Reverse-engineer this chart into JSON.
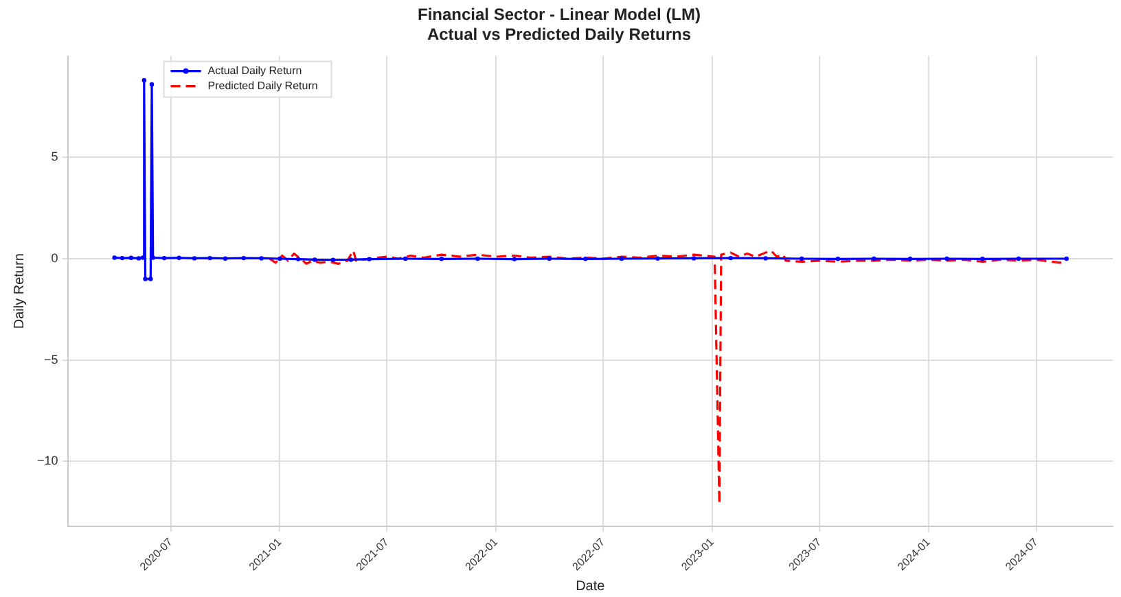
{
  "chart_data": {
    "type": "line",
    "title": "Financial Sector - Linear Model (LM)",
    "subtitle": "Actual vs Predicted Daily Returns",
    "xlabel": "Date",
    "ylabel": "Daily Return",
    "xlim": [
      "2020-01-09",
      "2024-11-07"
    ],
    "xticks": [
      "2020-07",
      "2021-01",
      "2021-07",
      "2022-01",
      "2022-07",
      "2023-01",
      "2023-07",
      "2024-01",
      "2024-07"
    ],
    "ylim": [
      -13.2,
      10.0
    ],
    "yticks": [
      {
        "value": -10,
        "label": "−10"
      },
      {
        "value": -5,
        "label": "−5"
      },
      0,
      5
    ],
    "grid": true,
    "legend": "top left",
    "series": [
      {
        "name": "Actual Daily Return",
        "color": "#0000ff",
        "marker": "circle",
        "line_style": "solid",
        "x": [
          "2020-03-28",
          "2020-04-10",
          "2020-04-25",
          "2020-05-08",
          "2020-05-15",
          "2020-05-17",
          "2020-05-19",
          "2020-05-28",
          "2020-05-30",
          "2020-06-01",
          "2020-06-20",
          "2020-07-15",
          "2020-08-10",
          "2020-09-05",
          "2020-10-01",
          "2020-11-01",
          "2020-12-01",
          "2021-01-01",
          "2021-02-01",
          "2021-03-01",
          "2021-04-01",
          "2021-05-01",
          "2021-06-01",
          "2021-08-01",
          "2021-10-01",
          "2021-12-01",
          "2022-02-01",
          "2022-04-01",
          "2022-06-01",
          "2022-08-01",
          "2022-10-01",
          "2022-12-01",
          "2023-02-01",
          "2023-04-01",
          "2023-06-01",
          "2023-08-01",
          "2023-10-01",
          "2023-12-01",
          "2024-02-01",
          "2024-04-01",
          "2024-06-01",
          "2024-08-21"
        ],
        "values": [
          0.05,
          0.03,
          0.04,
          0.02,
          0.05,
          8.8,
          -1.0,
          -1.0,
          8.6,
          0.05,
          0.03,
          0.04,
          0.02,
          0.03,
          0.01,
          0.03,
          0.02,
          0.0,
          -0.02,
          -0.05,
          -0.06,
          -0.05,
          -0.02,
          0.0,
          -0.01,
          0.0,
          -0.02,
          0.0,
          -0.01,
          0.0,
          0.01,
          0.02,
          0.03,
          0.02,
          0.0,
          -0.01,
          0.0,
          -0.01,
          0.0,
          -0.01,
          0.0,
          0.0
        ]
      },
      {
        "name": "Predicted Daily Return",
        "color": "#ff0000",
        "marker": "none",
        "line_style": "dashed",
        "x": [
          "2020-12-15",
          "2020-12-25",
          "2021-01-05",
          "2021-01-15",
          "2021-01-25",
          "2021-02-05",
          "2021-02-15",
          "2021-02-25",
          "2021-03-10",
          "2021-03-25",
          "2021-04-10",
          "2021-04-25",
          "2021-05-05",
          "2021-05-10",
          "2021-06-01",
          "2021-07-01",
          "2021-07-20",
          "2021-08-10",
          "2021-09-01",
          "2021-10-01",
          "2021-11-01",
          "2021-12-01",
          "2022-01-01",
          "2022-02-01",
          "2022-03-01",
          "2022-04-01",
          "2022-05-01",
          "2022-06-01",
          "2022-07-01",
          "2022-08-01",
          "2022-09-01",
          "2022-10-01",
          "2022-11-01",
          "2022-12-01",
          "2023-01-05",
          "2023-01-13",
          "2023-01-16",
          "2023-02-01",
          "2023-02-15",
          "2023-03-01",
          "2023-03-15",
          "2023-04-01",
          "2023-04-10",
          "2023-04-20",
          "2023-05-01",
          "2023-05-05",
          "2023-06-01",
          "2023-07-01",
          "2023-08-01",
          "2023-09-01",
          "2023-10-01",
          "2023-11-01",
          "2023-12-01",
          "2024-01-01",
          "2024-02-01",
          "2024-03-01",
          "2024-04-01",
          "2024-05-01",
          "2024-06-01",
          "2024-07-01",
          "2024-08-10",
          "2024-08-21"
        ],
        "values": [
          0.0,
          -0.2,
          0.15,
          -0.1,
          0.25,
          0.0,
          -0.25,
          -0.1,
          -0.2,
          -0.15,
          -0.25,
          -0.1,
          0.4,
          -0.1,
          0.0,
          0.1,
          0.0,
          0.15,
          0.05,
          0.2,
          0.1,
          0.2,
          0.1,
          0.15,
          0.05,
          0.1,
          0.0,
          0.05,
          0.0,
          0.1,
          0.05,
          0.15,
          0.1,
          0.2,
          0.1,
          -12.1,
          0.2,
          0.3,
          0.1,
          0.25,
          0.1,
          0.3,
          0.4,
          0.1,
          0.2,
          -0.1,
          -0.15,
          -0.1,
          -0.15,
          -0.1,
          -0.1,
          -0.05,
          -0.1,
          -0.05,
          -0.1,
          -0.05,
          -0.15,
          -0.05,
          -0.1,
          -0.05,
          -0.2,
          -0.1
        ]
      }
    ]
  }
}
